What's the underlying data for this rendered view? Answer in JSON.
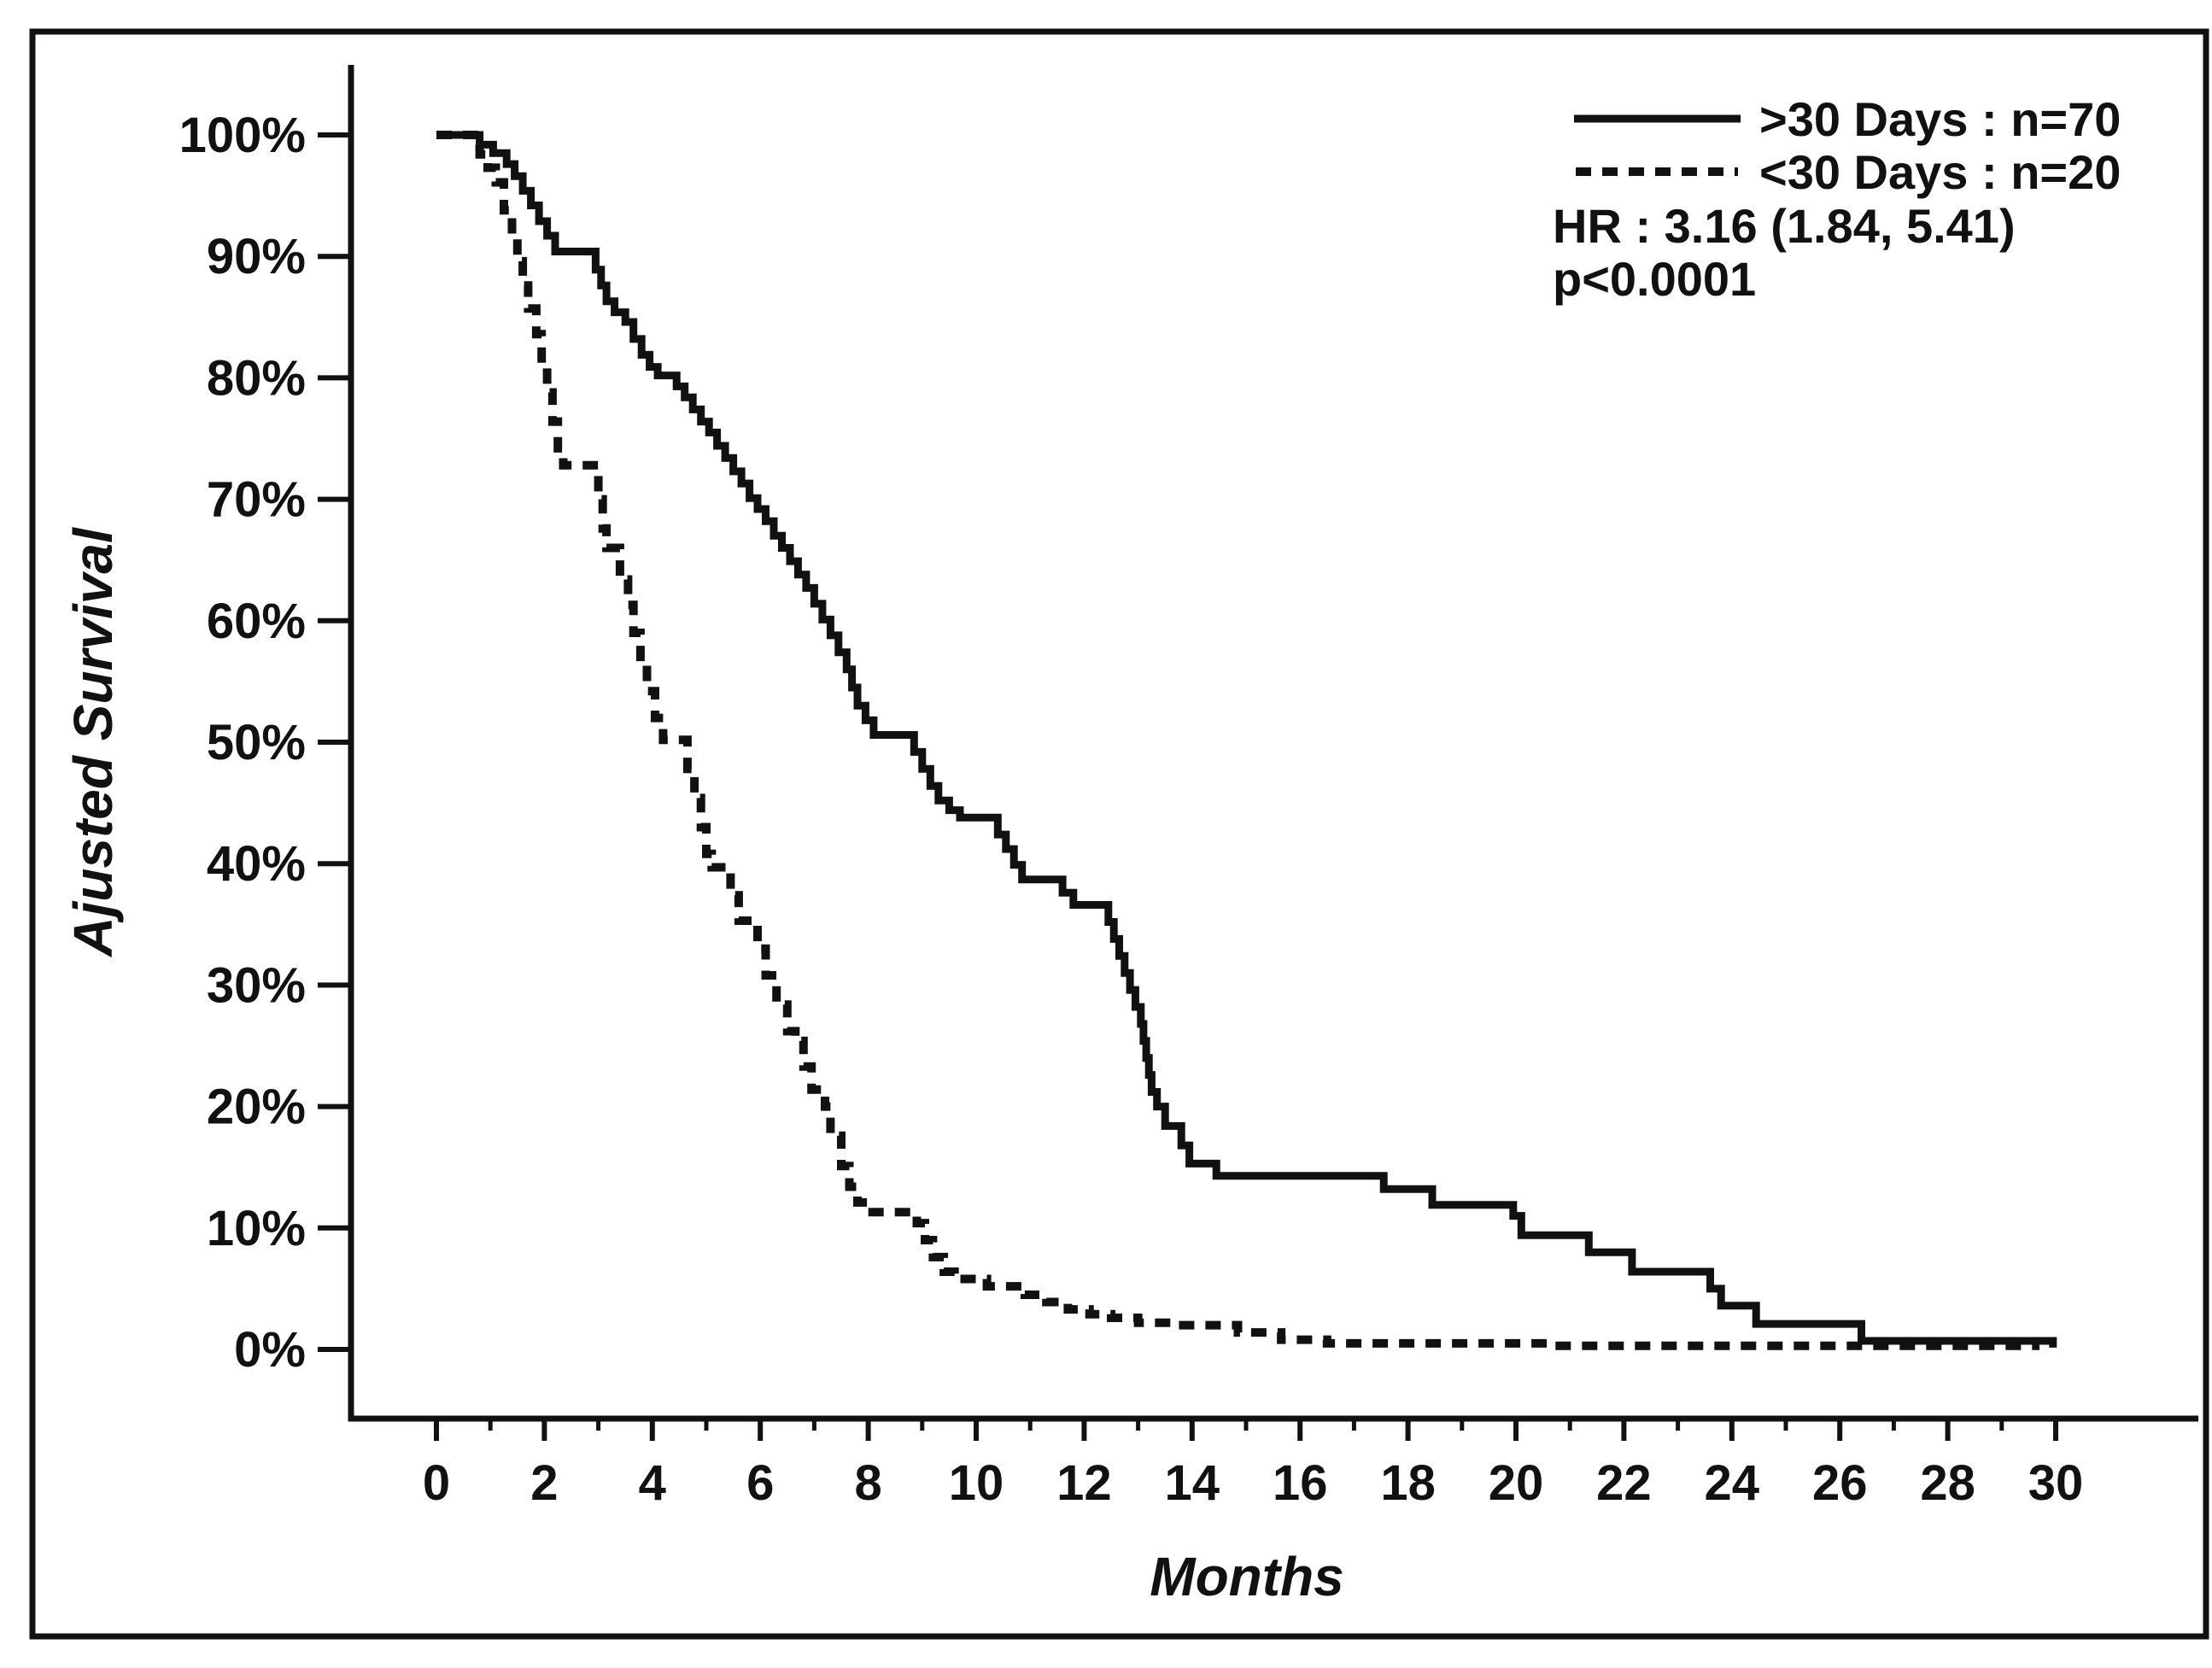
{
  "figure": {
    "background": "#ffffff",
    "line_color": "#111111",
    "border_color": "#111111"
  },
  "chart_data": {
    "type": "line",
    "subtype": "kaplan-meier-step",
    "title": "",
    "xlabel": "Months",
    "ylabel": "Ajusted Survival",
    "xlim": [
      0,
      30
    ],
    "ylim": [
      0,
      100
    ],
    "grid": false,
    "legend_position": "top-right",
    "x_major_ticks": [
      0,
      2,
      4,
      6,
      8,
      10,
      12,
      14,
      16,
      18,
      20,
      22,
      24,
      26,
      28,
      30
    ],
    "x_major_tick_labels": [
      "0",
      "2",
      "4",
      "6",
      "8",
      "10",
      "12",
      "14",
      "16",
      "18",
      "20",
      "22",
      "24",
      "26",
      "28",
      "30"
    ],
    "x_minor_ticks": [
      1,
      3,
      5,
      7,
      9,
      11,
      13,
      15,
      17,
      19,
      21,
      23,
      25,
      27,
      29
    ],
    "y_ticks": [
      0,
      10,
      20,
      30,
      40,
      50,
      60,
      70,
      80,
      90,
      100
    ],
    "y_tick_labels": [
      "0%",
      "10%",
      "20%",
      "30%",
      "40%",
      "50%",
      "60%",
      "70%",
      "80%",
      "90%",
      "100%"
    ],
    "series": [
      {
        "name": ">30 Days : n=70",
        "n": 70,
        "style": "solid",
        "color": "#111111",
        "points": [
          [
            0,
            100
          ],
          [
            0.8,
            99.2
          ],
          [
            1.05,
            98.5
          ],
          [
            1.3,
            97.6
          ],
          [
            1.45,
            96.6
          ],
          [
            1.6,
            95.4
          ],
          [
            1.75,
            94.2
          ],
          [
            1.9,
            92.9
          ],
          [
            2.05,
            91.7
          ],
          [
            2.2,
            90.4
          ],
          [
            2.95,
            88.9
          ],
          [
            3.05,
            87.6
          ],
          [
            3.15,
            86.3
          ],
          [
            3.3,
            85.4
          ],
          [
            3.5,
            84.6
          ],
          [
            3.65,
            83.2
          ],
          [
            3.8,
            81.9
          ],
          [
            3.95,
            80.9
          ],
          [
            4.1,
            80.2
          ],
          [
            4.45,
            79.3
          ],
          [
            4.6,
            78.4
          ],
          [
            4.75,
            77.4
          ],
          [
            4.9,
            76.4
          ],
          [
            5.05,
            75.5
          ],
          [
            5.2,
            74.4
          ],
          [
            5.35,
            73.4
          ],
          [
            5.5,
            72.3
          ],
          [
            5.65,
            71.3
          ],
          [
            5.8,
            70.1
          ],
          [
            5.95,
            69.2
          ],
          [
            6.1,
            68.2
          ],
          [
            6.25,
            67.0
          ],
          [
            6.4,
            66.0
          ],
          [
            6.55,
            64.9
          ],
          [
            6.7,
            63.8
          ],
          [
            6.85,
            62.7
          ],
          [
            7.0,
            61.4
          ],
          [
            7.15,
            60.1
          ],
          [
            7.3,
            58.8
          ],
          [
            7.45,
            57.4
          ],
          [
            7.6,
            56.0
          ],
          [
            7.7,
            54.5
          ],
          [
            7.8,
            53.0
          ],
          [
            7.95,
            51.8
          ],
          [
            8.1,
            50.6
          ],
          [
            8.85,
            49.2
          ],
          [
            9.0,
            47.8
          ],
          [
            9.15,
            46.4
          ],
          [
            9.3,
            45.2
          ],
          [
            9.5,
            44.4
          ],
          [
            9.7,
            43.8
          ],
          [
            10.4,
            42.4
          ],
          [
            10.55,
            41.2
          ],
          [
            10.7,
            39.9
          ],
          [
            10.85,
            38.7
          ],
          [
            11.6,
            37.6
          ],
          [
            11.8,
            36.6
          ],
          [
            12.45,
            35.2
          ],
          [
            12.55,
            33.8
          ],
          [
            12.65,
            32.4
          ],
          [
            12.75,
            31.0
          ],
          [
            12.85,
            29.6
          ],
          [
            12.95,
            28.2
          ],
          [
            13.05,
            26.8
          ],
          [
            13.1,
            25.4
          ],
          [
            13.15,
            24.0
          ],
          [
            13.2,
            22.6
          ],
          [
            13.25,
            21.2
          ],
          [
            13.35,
            20.0
          ],
          [
            13.5,
            18.4
          ],
          [
            13.8,
            16.8
          ],
          [
            13.95,
            15.3
          ],
          [
            14.45,
            14.3
          ],
          [
            17.55,
            13.2
          ],
          [
            18.45,
            11.9
          ],
          [
            19.95,
            11.0
          ],
          [
            20.1,
            9.4
          ],
          [
            21.35,
            8.0
          ],
          [
            22.15,
            6.4
          ],
          [
            23.6,
            5.0
          ],
          [
            23.8,
            3.6
          ],
          [
            24.45,
            2.1
          ],
          [
            26.4,
            0.7
          ],
          [
            29.95,
            0.15
          ]
        ]
      },
      {
        "name": "<30 Days : n=20",
        "n": 20,
        "style": "dashed",
        "color": "#111111",
        "points": [
          [
            0,
            100
          ],
          [
            0.8,
            98.4
          ],
          [
            0.95,
            97.3
          ],
          [
            1.1,
            96.1
          ],
          [
            1.25,
            93.8
          ],
          [
            1.4,
            91.8
          ],
          [
            1.5,
            89.6
          ],
          [
            1.6,
            87.6
          ],
          [
            1.7,
            85.7
          ],
          [
            1.85,
            83.6
          ],
          [
            1.95,
            81.2
          ],
          [
            2.05,
            78.8
          ],
          [
            2.15,
            76.4
          ],
          [
            2.25,
            74.2
          ],
          [
            2.35,
            72.8
          ],
          [
            3.0,
            70.0
          ],
          [
            3.08,
            67.6
          ],
          [
            3.15,
            66.0
          ],
          [
            3.4,
            63.4
          ],
          [
            3.55,
            61.3
          ],
          [
            3.65,
            59.0
          ],
          [
            3.78,
            56.6
          ],
          [
            3.9,
            54.2
          ],
          [
            4.05,
            52.0
          ],
          [
            4.2,
            50.2
          ],
          [
            4.65,
            47.8
          ],
          [
            4.78,
            45.4
          ],
          [
            4.9,
            43.0
          ],
          [
            5.0,
            40.8
          ],
          [
            5.1,
            39.7
          ],
          [
            5.45,
            37.4
          ],
          [
            5.6,
            35.3
          ],
          [
            5.95,
            33.0
          ],
          [
            6.1,
            30.8
          ],
          [
            6.3,
            28.4
          ],
          [
            6.5,
            26.2
          ],
          [
            6.65,
            25.4
          ],
          [
            6.8,
            23.3
          ],
          [
            6.95,
            21.4
          ],
          [
            7.2,
            20.0
          ],
          [
            7.3,
            17.6
          ],
          [
            7.5,
            15.1
          ],
          [
            7.65,
            13.4
          ],
          [
            7.8,
            12.1
          ],
          [
            8.0,
            11.3
          ],
          [
            8.9,
            10.4
          ],
          [
            9.05,
            9.0
          ],
          [
            9.2,
            7.6
          ],
          [
            9.4,
            6.4
          ],
          [
            9.6,
            5.8
          ],
          [
            10.2,
            5.2
          ],
          [
            10.9,
            4.5
          ],
          [
            11.3,
            3.9
          ],
          [
            11.7,
            3.3
          ],
          [
            12.1,
            2.9
          ],
          [
            12.5,
            2.6
          ],
          [
            13.0,
            2.2
          ],
          [
            13.6,
            2.0
          ],
          [
            14.85,
            1.4
          ],
          [
            15.65,
            0.8
          ],
          [
            16.5,
            0.5
          ],
          [
            20.6,
            0.3
          ],
          [
            29.7,
            0.3
          ]
        ]
      }
    ],
    "annotations": [
      {
        "text": "HR : 3.16 (1.84, 5.41)"
      },
      {
        "text": "p<0.0001"
      }
    ]
  }
}
